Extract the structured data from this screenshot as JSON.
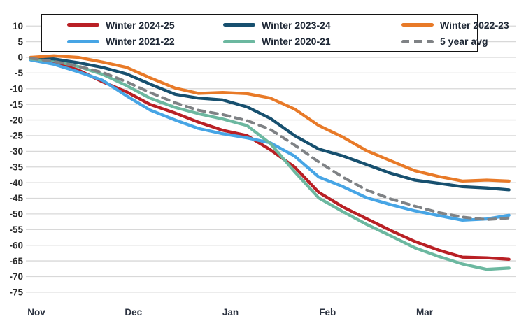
{
  "chart_data": {
    "type": "line",
    "title": "",
    "xlabel": "",
    "ylabel": "",
    "x_axis": {
      "labels": [
        "Nov",
        "Dec",
        "Jan",
        "Feb",
        "Mar"
      ],
      "note": "x unit = months since Nov 1; axis spans Nov through late Mar"
    },
    "y_axis": {
      "ticks": [
        10,
        5,
        0,
        -5,
        -10,
        -15,
        -20,
        -25,
        -30,
        -35,
        -40,
        -45,
        -50,
        -55,
        -60,
        -65,
        -70,
        -75
      ],
      "max": 10,
      "min": -75,
      "grid": true
    },
    "x_months": [
      -0.06,
      0.18,
      0.43,
      0.68,
      0.93,
      1.17,
      1.43,
      1.67,
      1.92,
      2.17,
      2.41,
      2.66,
      2.91,
      3.16,
      3.4,
      3.65,
      3.9,
      4.14,
      4.39,
      4.64,
      4.87
    ],
    "series": [
      {
        "name": "Winter 2024-25",
        "color": "#b92025",
        "dash": false,
        "values": [
          -0.3,
          -1.6,
          -4,
          -7.8,
          -11,
          -15,
          -17.8,
          -20.7,
          -23.3,
          -25,
          -29.5,
          -35,
          -43.1,
          -47.8,
          -51.5,
          -55.3,
          -58.8,
          -61.5,
          -63.8,
          -64,
          -64.5
        ]
      },
      {
        "name": "Winter 2023-24",
        "color": "#17506f",
        "dash": false,
        "values": [
          0,
          -0.5,
          -1.7,
          -3.2,
          -5.3,
          -8.5,
          -11.8,
          -13,
          -13.6,
          -15.8,
          -19.5,
          -25,
          -29.3,
          -31.5,
          -34.2,
          -37,
          -39.2,
          -40.2,
          -41.3,
          -41.7,
          -42.3
        ]
      },
      {
        "name": "Winter 2022-23",
        "color": "#e87a28",
        "dash": false,
        "values": [
          0,
          0.5,
          0,
          -1.5,
          -3.2,
          -6.5,
          -9.8,
          -11.5,
          -11.2,
          -11.6,
          -13,
          -16.5,
          -21.8,
          -25.5,
          -29.8,
          -33,
          -36.2,
          -38,
          -39.5,
          -39.2,
          -39.5
        ]
      },
      {
        "name": "Winter 2021-22",
        "color": "#47a5e5",
        "dash": false,
        "values": [
          -0.8,
          -2.2,
          -4.6,
          -7.3,
          -12.3,
          -16.8,
          -20,
          -22.7,
          -24.4,
          -25.7,
          -27.3,
          -31.5,
          -38.2,
          -41.3,
          -44.8,
          -47,
          -49,
          -50.5,
          -52,
          -51.6,
          -50.4
        ]
      },
      {
        "name": "Winter 2020-21",
        "color": "#6cb8a0",
        "dash": false,
        "values": [
          -0.5,
          -1.1,
          -2.9,
          -5.4,
          -9,
          -13,
          -16,
          -18,
          -19.7,
          -21.8,
          -27.5,
          -36.5,
          -44.9,
          -49.3,
          -53.3,
          -57,
          -60.8,
          -63.5,
          -66,
          -67.7,
          -67.3
        ]
      },
      {
        "name": "5 year avg",
        "color": "#7f8285",
        "dash": true,
        "values": [
          -0.3,
          -1.3,
          -2.8,
          -4.8,
          -7.8,
          -11.2,
          -14.5,
          -16.9,
          -18.3,
          -20.2,
          -23,
          -28,
          -33.4,
          -38.3,
          -42.3,
          -45.2,
          -47.5,
          -49.5,
          -51,
          -51.8,
          -51.3
        ]
      }
    ],
    "legend": {
      "position": "top",
      "order": [
        0,
        1,
        2,
        3,
        4,
        5
      ]
    },
    "draw_order": [
      0,
      3,
      4,
      1,
      2,
      5
    ],
    "grid_color": "#d8d8d8",
    "background": "#ffffff"
  }
}
